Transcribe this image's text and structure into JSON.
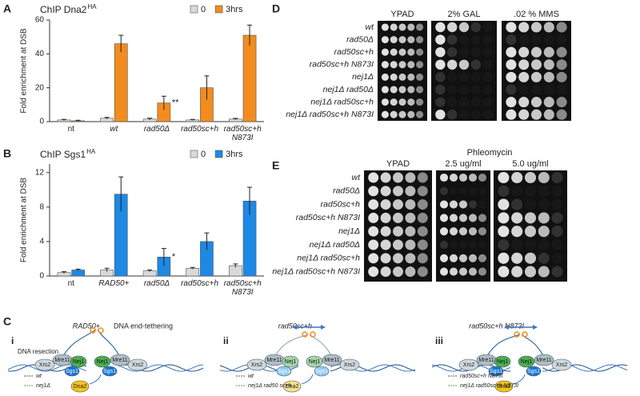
{
  "chart_data": [
    {
      "type": "bar",
      "panel_label": "A",
      "title": "ChIP Dna2",
      "title_superscript": "HA",
      "ylabel": "Fold enrichment at DSB",
      "categories": [
        "nt",
        "wt",
        "rad50Δ",
        "rad50sc+h",
        "rad50sc+h N873I"
      ],
      "series": [
        {
          "name": "0",
          "color": "#d9d9d9",
          "values": [
            1,
            2,
            1.5,
            1,
            1.5
          ],
          "errors": [
            0.3,
            0.5,
            0.5,
            0.3,
            0.4
          ]
        },
        {
          "name": "3hrs",
          "color": "#f28c1e",
          "values": [
            0.5,
            46,
            11,
            20,
            51
          ],
          "errors": [
            0.3,
            5,
            4,
            7,
            6
          ]
        }
      ],
      "ylim": [
        0,
        60
      ],
      "yticks": [
        0,
        20,
        40,
        60
      ],
      "annotation": "**"
    },
    {
      "type": "bar",
      "panel_label": "B",
      "title": "ChIP Sgs1",
      "title_superscript": "HA",
      "ylabel": "Fold enrichment at DSB",
      "categories": [
        "nt",
        "RAD50+",
        "rad50Δ",
        "rad50sc+h",
        "rad50sc+h N873I"
      ],
      "series": [
        {
          "name": "0",
          "color": "#d9d9d9",
          "values": [
            0.4,
            0.7,
            0.6,
            0.9,
            1.2
          ],
          "errors": [
            0.1,
            0.2,
            0.1,
            0.1,
            0.2
          ]
        },
        {
          "name": "3hrs",
          "color": "#1e88e5",
          "values": [
            0.7,
            9.5,
            2.2,
            4,
            8.7
          ],
          "errors": [
            0.1,
            2,
            1,
            1,
            1.6
          ]
        }
      ],
      "ylim": [
        0,
        13
      ],
      "yticks": [
        0,
        4,
        8,
        12
      ],
      "annotation": "*"
    }
  ],
  "panel_d": {
    "label": "D",
    "columns": [
      "YPAD",
      "2% GAL",
      ".02 % MMS"
    ],
    "rows": [
      "wt",
      "rad50Δ",
      "rad50sc+h",
      "rad50sc+h N873I",
      "nej1Δ",
      "nej1Δ rad50Δ",
      "nej1Δ rad50sc+h",
      "nej1Δ rad50sc+h N873I"
    ]
  },
  "panel_e": {
    "label": "E",
    "header": "Phleomycin",
    "columns": [
      "YPAD",
      "2.5 ug/ml",
      "5.0 ug/ml"
    ],
    "rows": [
      "wt",
      "rad50Δ",
      "rad50sc+h",
      "rad50sc+h N873I",
      "nej1Δ",
      "nej1Δ rad50Δ",
      "nej1Δ rad50sc+h",
      "nej1Δ rad50sc+h N873I"
    ]
  },
  "panel_c": {
    "label": "C",
    "diagrams": [
      {
        "label": "i",
        "title": "RAD50+",
        "note": "DNA end-tethering",
        "side_note": "DNA resection",
        "legend": [
          "wt",
          "nej1Δ"
        ]
      },
      {
        "label": "ii",
        "title": "rad50sc+h",
        "legend": [
          "wt",
          "nej1Δ rad50 sc+h"
        ]
      },
      {
        "label": "iii",
        "title": "rad50sc+h N873I",
        "legend": [
          "rad50sc+h N873I",
          "nej1Δ rad50sc+h N873I"
        ]
      }
    ],
    "proteins": [
      "Xrs2",
      "Mre11",
      "Nej1",
      "Sgs1",
      "Dna2"
    ]
  }
}
